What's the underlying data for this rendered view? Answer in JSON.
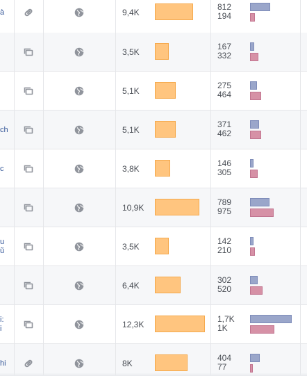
{
  "rows": [
    {
      "title_fragment": "à",
      "type_icon": "link-icon",
      "privacy_icon": "globe-icon",
      "reach": "9,4K",
      "reach_value": 9.4,
      "eng_top": "812",
      "eng_bottom": "194",
      "blue_value": 812,
      "pink_value": 194
    },
    {
      "title_fragment": "",
      "type_icon": "multi-photo-icon",
      "privacy_icon": "globe-icon",
      "reach": "3,5K",
      "reach_value": 3.5,
      "eng_top": "167",
      "eng_bottom": "332",
      "blue_value": 167,
      "pink_value": 332
    },
    {
      "title_fragment": "",
      "type_icon": "multi-photo-icon",
      "privacy_icon": "globe-icon",
      "reach": "5,1K",
      "reach_value": 5.1,
      "eng_top": "275",
      "eng_bottom": "464",
      "blue_value": 275,
      "pink_value": 464
    },
    {
      "title_fragment": "ch",
      "type_icon": "multi-photo-icon",
      "privacy_icon": "globe-icon",
      "reach": "5,1K",
      "reach_value": 5.1,
      "eng_top": "371",
      "eng_bottom": "462",
      "blue_value": 371,
      "pink_value": 462
    },
    {
      "title_fragment": "c",
      "type_icon": "multi-photo-icon",
      "privacy_icon": "globe-icon",
      "reach": "3,8K",
      "reach_value": 3.8,
      "eng_top": "146",
      "eng_bottom": "305",
      "blue_value": 146,
      "pink_value": 305
    },
    {
      "title_fragment": "",
      "type_icon": "multi-photo-icon",
      "privacy_icon": "globe-icon",
      "reach": "10,9K",
      "reach_value": 10.9,
      "eng_top": "789",
      "eng_bottom": "975",
      "blue_value": 789,
      "pink_value": 975
    },
    {
      "title_fragment": "u\nũ",
      "type_icon": "multi-photo-icon",
      "privacy_icon": "globe-icon",
      "reach": "3,5K",
      "reach_value": 3.5,
      "eng_top": "142",
      "eng_bottom": "210",
      "blue_value": 142,
      "pink_value": 210
    },
    {
      "title_fragment": "",
      "type_icon": "multi-photo-icon",
      "privacy_icon": "globe-icon",
      "reach": "6,4K",
      "reach_value": 6.4,
      "eng_top": "302",
      "eng_bottom": "520",
      "blue_value": 302,
      "pink_value": 520
    },
    {
      "title_fragment": "i:\ni",
      "type_icon": "multi-photo-icon",
      "privacy_icon": "globe-icon",
      "reach": "12,3K",
      "reach_value": 12.3,
      "eng_top": "1,7K",
      "eng_bottom": "1K",
      "blue_value": 1700,
      "pink_value": 1000
    },
    {
      "title_fragment": "hi",
      "type_icon": "link-icon",
      "privacy_icon": "globe-icon",
      "reach": "8K",
      "reach_value": 8.0,
      "eng_top": "404",
      "eng_bottom": "77",
      "blue_value": 404,
      "pink_value": 77
    }
  ],
  "colors": {
    "reach_bar": "#ffc57f",
    "engagement_blue": "#9aa6ca",
    "engagement_pink": "#d691a6",
    "link_text": "#365899",
    "row_alt": "#f6f7f9"
  }
}
